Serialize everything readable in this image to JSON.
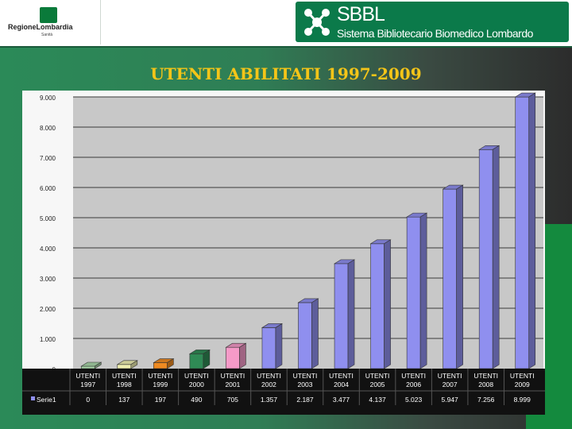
{
  "header": {
    "regione_name": "RegioneLombardia",
    "regione_sub": "Sanità",
    "sbbl_title": "SBBL",
    "sbbl_subtitle": "Sistema Bibliotecario Biomedico Lombardo"
  },
  "colors": {
    "bar_default": "#8f8fef",
    "bar_1997": "#a9d6a9",
    "bar_1998": "#eeeeb0",
    "bar_1999": "#ee8a22",
    "bar_2000": "#2f8a55",
    "bar_2001": "#f59ac8",
    "title": "#f5c518"
  },
  "chart_data": {
    "type": "bar",
    "title": "UTENTI ABILITATI 1997-2009",
    "categories": [
      "UTENTI 1997",
      "UTENTI 1998",
      "UTENTI 1999",
      "UTENTI 2000",
      "UTENTI 2001",
      "UTENTI 2002",
      "UTENTI 2003",
      "UTENTI 2004",
      "UTENTI 2005",
      "UTENTI 2006",
      "UTENTI 2007",
      "UTENTI 2008",
      "UTENTI 2009"
    ],
    "series": [
      {
        "name": "Serie1",
        "values": [
          0,
          137,
          197,
          490,
          705,
          1357,
          2187,
          3477,
          4137,
          5023,
          5947,
          7256,
          8999
        ],
        "labels": [
          "0",
          "137",
          "197",
          "490",
          "705",
          "1.357",
          "2.187",
          "3.477",
          "4.137",
          "5.023",
          "5.947",
          "7.256",
          "8.999"
        ]
      }
    ],
    "yticks": [
      "0",
      "1.000",
      "2.000",
      "3.000",
      "4.000",
      "5.000",
      "6.000",
      "7.000",
      "8.000",
      "9.000"
    ],
    "ylim": [
      0,
      9000
    ],
    "grid": true,
    "data_table": true
  }
}
